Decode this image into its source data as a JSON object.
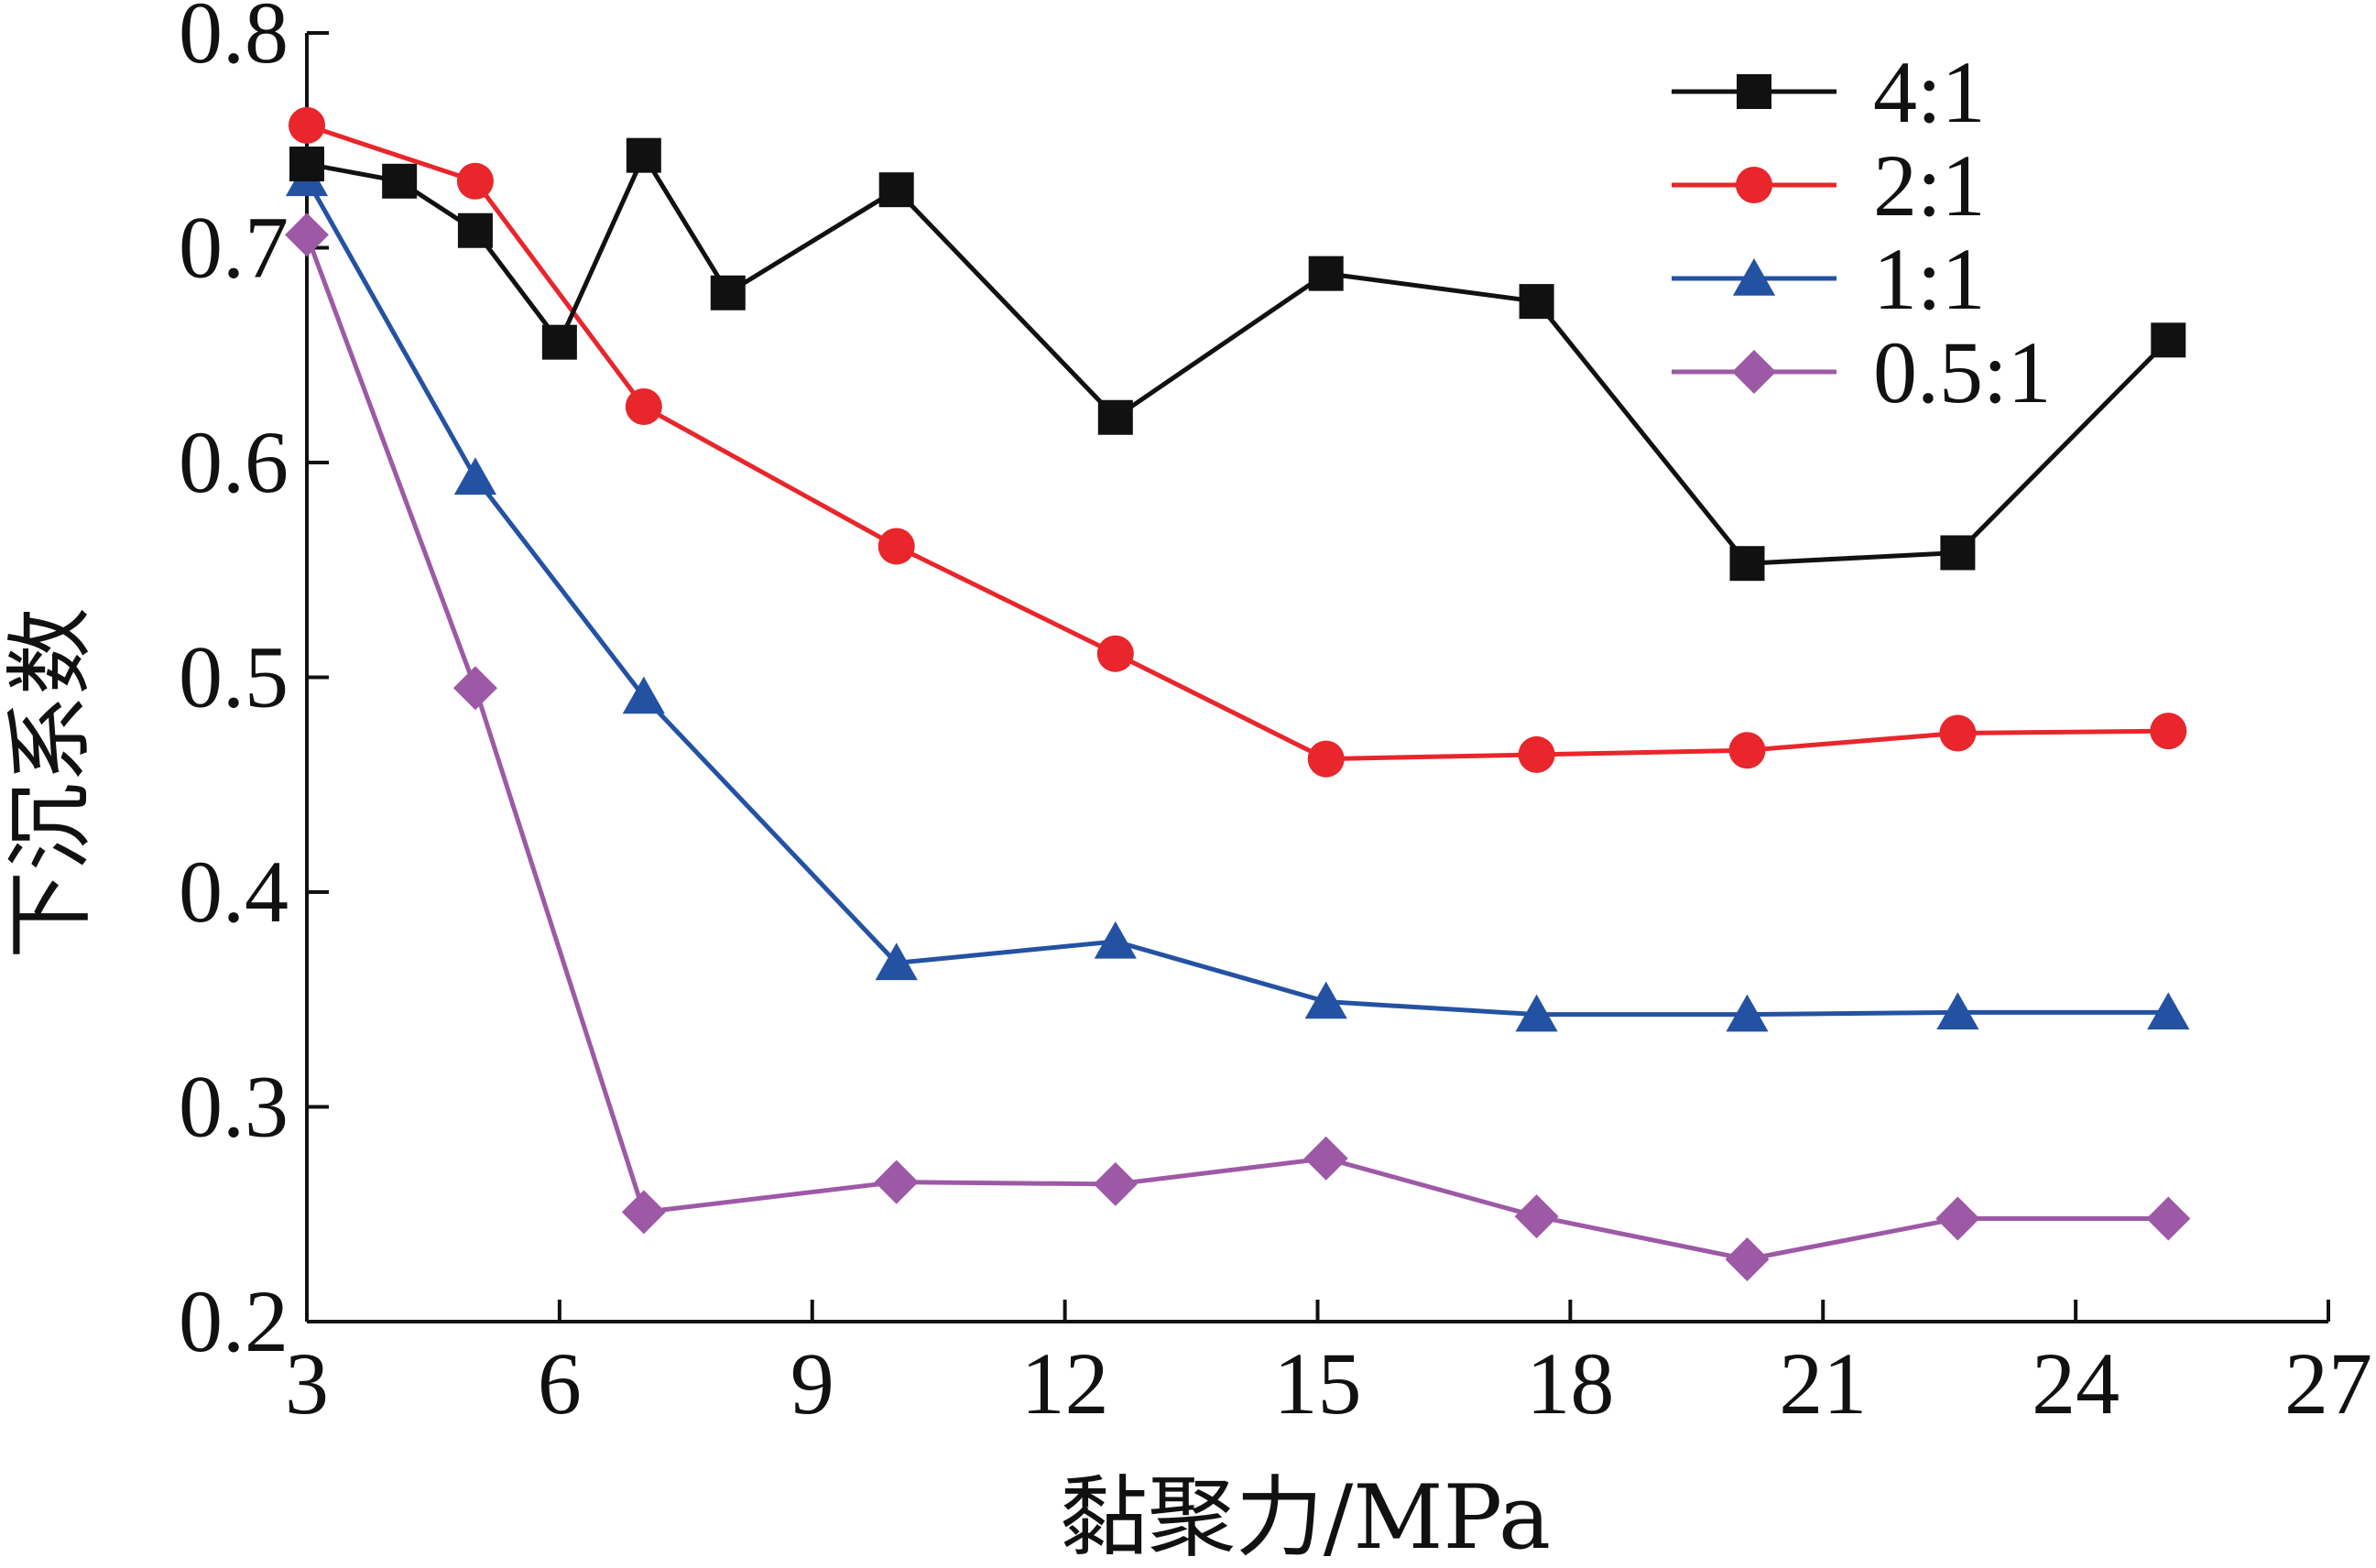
{
  "chart_data": {
    "type": "line",
    "title": "",
    "xlabel": "黏聚力/MPa",
    "ylabel": "下沉系数",
    "xlim": [
      3,
      27
    ],
    "ylim": [
      0.2,
      0.8
    ],
    "xticks": [
      "3",
      "6",
      "9",
      "12",
      "15",
      "18",
      "21",
      "24",
      "27"
    ],
    "yticks": [
      "0.2",
      "0.3",
      "0.4",
      "0.5",
      "0.6",
      "0.7",
      "0.8"
    ],
    "grid": false,
    "legend_position": "top-right",
    "series": [
      {
        "name": "4:1",
        "color": "#111111",
        "marker": "square",
        "x": [
          3.0,
          4.1,
          5.0,
          6.0,
          7.0,
          8.0,
          10.0,
          12.6,
          15.1,
          17.6,
          20.1,
          22.6,
          25.1
        ],
        "y": [
          0.739,
          0.731,
          0.708,
          0.656,
          0.743,
          0.679,
          0.727,
          0.621,
          0.688,
          0.675,
          0.553,
          0.558,
          0.657
        ]
      },
      {
        "name": "2:1",
        "color": "#e8262b",
        "marker": "circle",
        "x": [
          3.0,
          5.0,
          7.0,
          10.0,
          12.6,
          15.1,
          17.6,
          20.1,
          22.6,
          25.1
        ],
        "y": [
          0.757,
          0.731,
          0.626,
          0.561,
          0.511,
          0.462,
          0.464,
          0.466,
          0.474,
          0.475
        ]
      },
      {
        "name": "1:1",
        "color": "#2452a3",
        "marker": "triangle",
        "x": [
          3.0,
          5.0,
          7.0,
          10.0,
          12.6,
          15.1,
          17.6,
          20.1,
          22.6,
          25.1
        ],
        "y": [
          0.732,
          0.593,
          0.491,
          0.367,
          0.377,
          0.349,
          0.343,
          0.343,
          0.344,
          0.344
        ]
      },
      {
        "name": "0.5:1",
        "color": "#9d59a6",
        "marker": "diamond",
        "x": [
          3.0,
          5.0,
          7.0,
          10.0,
          12.6,
          15.1,
          17.6,
          20.1,
          22.6,
          25.1
        ],
        "y": [
          0.706,
          0.495,
          0.251,
          0.265,
          0.264,
          0.276,
          0.249,
          0.229,
          0.248,
          0.248
        ]
      }
    ]
  }
}
